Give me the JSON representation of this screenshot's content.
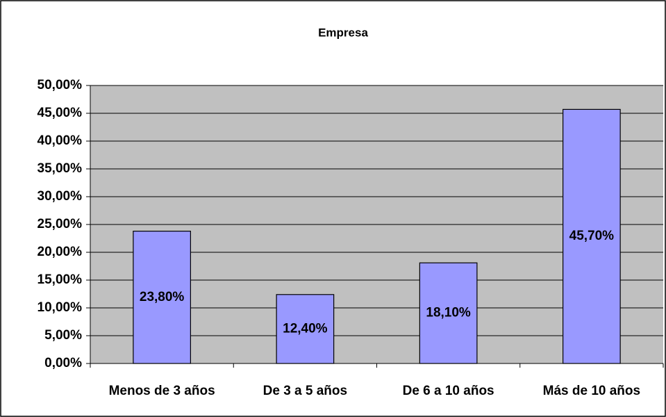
{
  "chart_data": {
    "type": "bar",
    "title": "Empresa",
    "categories": [
      "Menos de 3 años",
      "De 3 a 5 años",
      "De 6 a 10 años",
      "Más de 10 años"
    ],
    "values": [
      23.8,
      12.4,
      18.1,
      45.7
    ],
    "value_labels": [
      "23,80%",
      "12,40%",
      "18,10%",
      "45,70%"
    ],
    "color": "#9999ff",
    "ylim": [
      0,
      50
    ],
    "yticks": [
      {
        "value": 0,
        "label": "0,00%"
      },
      {
        "value": 5,
        "label": "5,00%"
      },
      {
        "value": 10,
        "label": "10,00%"
      },
      {
        "value": 15,
        "label": "15,00%"
      },
      {
        "value": 20,
        "label": "20,00%"
      },
      {
        "value": 25,
        "label": "25,00%"
      },
      {
        "value": 30,
        "label": "30,00%"
      },
      {
        "value": 35,
        "label": "35,00%"
      },
      {
        "value": 40,
        "label": "40,00%"
      },
      {
        "value": 45,
        "label": "45,00%"
      },
      {
        "value": 50,
        "label": "50,00%"
      }
    ],
    "grid": true
  }
}
